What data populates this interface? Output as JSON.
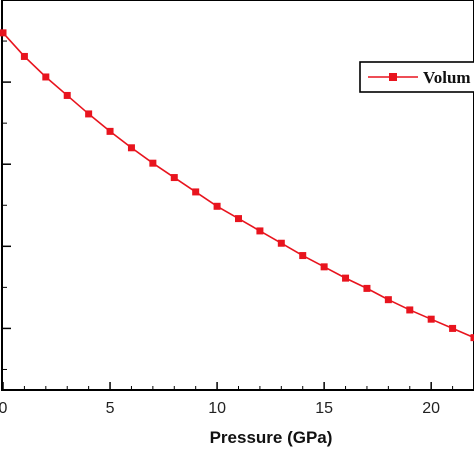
{
  "chart_data": {
    "type": "line",
    "xlabel": "Pressure (GPa)",
    "ylabel": "",
    "xlim": [
      0,
      22
    ],
    "ylim": [
      0.05,
      1
    ],
    "x_ticks": [
      0,
      5,
      10,
      15,
      20
    ],
    "x_tick_labels": [
      "0",
      "5",
      "10",
      "15",
      "20"
    ],
    "grid": false,
    "legend_position": "top-right",
    "series": [
      {
        "name": "Volum",
        "color": "#e8141e",
        "marker": "square",
        "x": [
          0,
          1,
          2,
          3,
          4,
          5,
          6,
          7,
          8,
          9,
          10,
          11,
          12,
          13,
          14,
          15,
          16,
          17,
          18,
          19,
          20,
          21,
          22
        ],
        "y": [
          0.92,
          0.8625,
          0.8125,
          0.7675,
          0.7225,
          0.68,
          0.64,
          0.6025,
          0.5675,
          0.5325,
          0.4975,
          0.4675,
          0.4375,
          0.4075,
          0.3775,
          0.35,
          0.3225,
          0.2975,
          0.27,
          0.245,
          0.2225,
          0.2,
          0.1775
        ]
      }
    ]
  }
}
